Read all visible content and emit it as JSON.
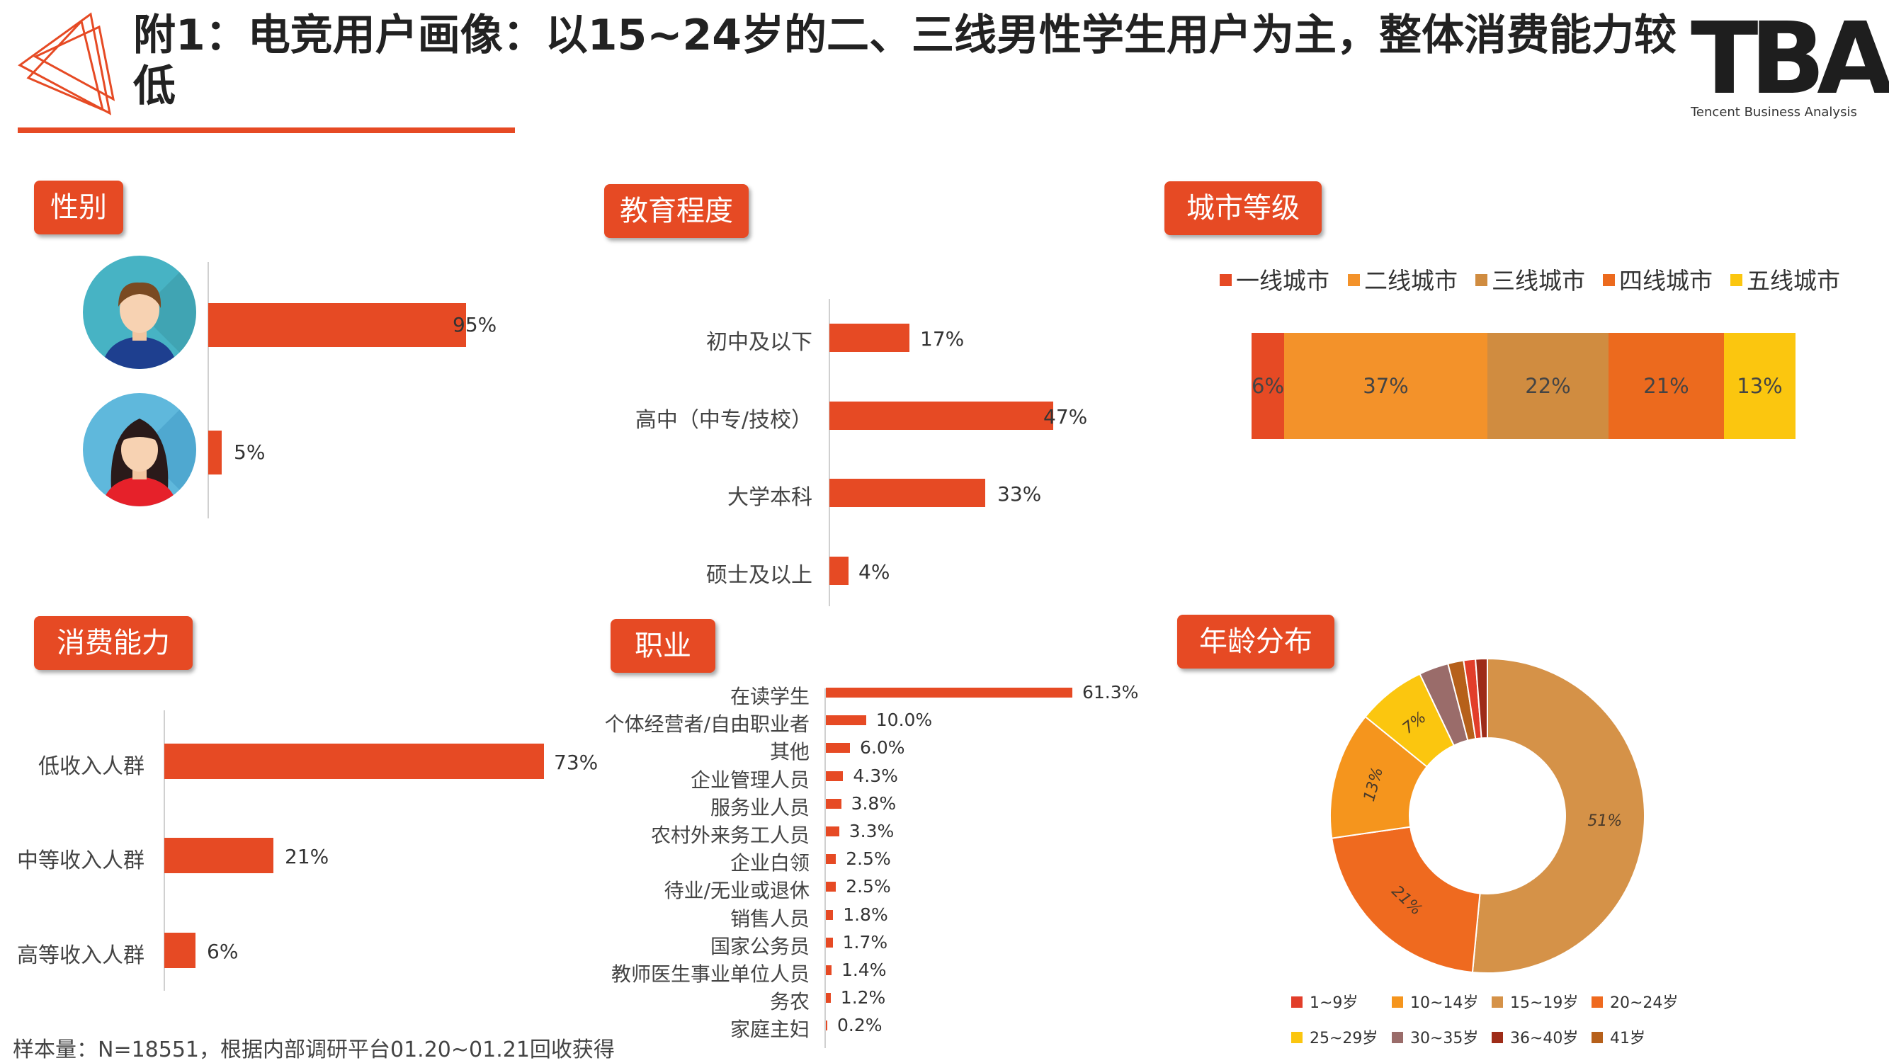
{
  "title": "附1：电竞用户画像：以15~24岁的二、三线男性学生用户为主，整体消费能力较低",
  "logo": {
    "mark": "TBA",
    "sub": "Tencent Business Analysis"
  },
  "footnote": "样本量：N=18551，根据内部调研平台01.20~01.21回收获得",
  "sections": {
    "gender": "性别",
    "education": "教育程度",
    "city": "城市等级",
    "income": "消费能力",
    "occupation": "职业",
    "age": "年龄分布"
  },
  "chart_data": [
    {
      "id": "gender",
      "type": "bar",
      "orientation": "horizontal",
      "categories": [
        "男",
        "女"
      ],
      "category_icons": [
        "male-avatar-icon",
        "female-avatar-icon"
      ],
      "values": [
        95,
        5
      ],
      "labels": [
        "95%",
        "5%"
      ],
      "xlim": [
        0,
        100
      ]
    },
    {
      "id": "education",
      "type": "bar",
      "orientation": "horizontal",
      "categories": [
        "初中及以下",
        "高中（中专/技校）",
        "大学本科",
        "硕士及以上"
      ],
      "values": [
        17,
        47,
        33,
        4
      ],
      "labels": [
        "17%",
        "47%",
        "33%",
        "4%"
      ],
      "xlim": [
        0,
        50
      ]
    },
    {
      "id": "city",
      "type": "bar",
      "stacked": true,
      "series": [
        {
          "name": "一线城市",
          "values": [
            6
          ],
          "label": "6%",
          "color": "#e64a24"
        },
        {
          "name": "二线城市",
          "values": [
            37
          ],
          "label": "37%",
          "color": "#f3922a"
        },
        {
          "name": "三线城市",
          "values": [
            22
          ],
          "label": "22%",
          "color": "#d08c40"
        },
        {
          "name": "四线城市",
          "values": [
            21
          ],
          "label": "21%",
          "color": "#ec6a1e"
        },
        {
          "name": "五线城市",
          "values": [
            13
          ],
          "label": "13%",
          "color": "#fbc60f"
        }
      ],
      "legend_position": "top"
    },
    {
      "id": "income",
      "type": "bar",
      "orientation": "horizontal",
      "categories": [
        "低收入人群",
        "中等收入人群",
        "高等收入人群"
      ],
      "values": [
        73,
        21,
        6
      ],
      "labels": [
        "73%",
        "21%",
        "6%"
      ],
      "xlim": [
        0,
        80
      ]
    },
    {
      "id": "occupation",
      "type": "bar",
      "orientation": "horizontal",
      "categories": [
        "在读学生",
        "个体经营者/自由职业者",
        "其他",
        "企业管理人员",
        "服务业人员",
        "农村外来务工人员",
        "企业白领",
        "待业/无业或退休",
        "销售人员",
        "国家公务员",
        "教师医生事业单位人员",
        "务农",
        "家庭主妇"
      ],
      "values": [
        61.3,
        10.0,
        6.0,
        4.3,
        3.8,
        3.3,
        2.5,
        2.5,
        1.8,
        1.7,
        1.4,
        1.2,
        0.2
      ],
      "labels": [
        "61.3%",
        "10.0%",
        "6.0%",
        "4.3%",
        "3.8%",
        "3.3%",
        "2.5%",
        "2.5%",
        "1.8%",
        "1.7%",
        "1.4%",
        "1.2%",
        "0.2%"
      ],
      "xlim": [
        0,
        65
      ]
    },
    {
      "id": "age",
      "type": "pie",
      "donut": true,
      "slices": [
        {
          "name": "15~19岁",
          "value": 51,
          "label": "51%",
          "color": "#d59248"
        },
        {
          "name": "20~24岁",
          "value": 21,
          "label": "21%",
          "color": "#ef6a1f"
        },
        {
          "name": "10~14岁",
          "value": 13,
          "label": "13%",
          "color": "#f5951d"
        },
        {
          "name": "25~29岁",
          "value": 7,
          "label": "7%",
          "color": "#fbc60f"
        },
        {
          "name": "30~35岁",
          "value": 3,
          "label": "",
          "color": "#9a6c6a"
        },
        {
          "name": "41岁",
          "value": 1.6,
          "label": "",
          "color": "#b6601a"
        },
        {
          "name": "1~9岁",
          "value": 1.2,
          "label": "",
          "color": "#e23e2a"
        },
        {
          "name": "36~40岁",
          "value": 1.2,
          "label": "",
          "color": "#9e2c18"
        }
      ],
      "legend": [
        {
          "name": "1~9岁",
          "color": "#e23e2a"
        },
        {
          "name": "10~14岁",
          "color": "#f5951d"
        },
        {
          "name": "15~19岁",
          "color": "#d59248"
        },
        {
          "name": "20~24岁",
          "color": "#ef6a1f"
        },
        {
          "name": "25~29岁",
          "color": "#fbc60f"
        },
        {
          "name": "30~35岁",
          "color": "#9a6c6a"
        },
        {
          "name": "36~40岁",
          "color": "#9e2c18"
        },
        {
          "name": "41岁",
          "color": "#b6601a"
        }
      ],
      "legend_position": "bottom"
    }
  ]
}
